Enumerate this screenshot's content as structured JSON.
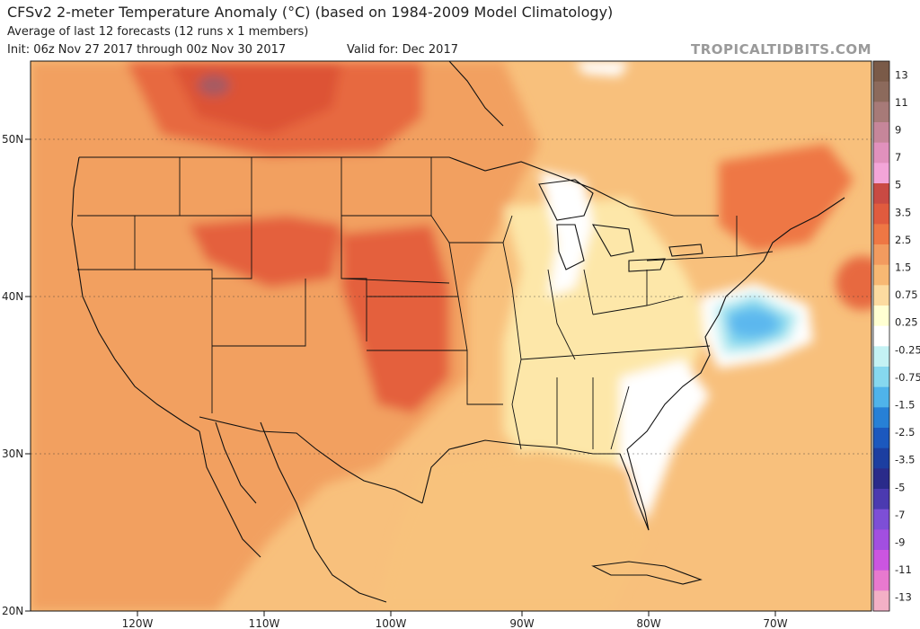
{
  "header": {
    "title": "CFSv2 2-meter Temperature Anomaly (°C) (based on 1984-2009 Model Climatology)",
    "subtitle": "Average of last 12 forecasts (12 runs x 1 members)",
    "init": "Init: 06z Nov 27 2017 through 00z Nov 30 2017",
    "valid": "Valid for: Dec 2017",
    "brand": "TROPICALTIDBITS.COM"
  },
  "map": {
    "lat_labels": [
      "50N",
      "40N",
      "30N",
      "20N"
    ],
    "lon_labels": [
      "120W",
      "110W",
      "100W",
      "90W",
      "80W",
      "70W"
    ]
  },
  "colorbar": {
    "labels": [
      "13",
      "11",
      "9",
      "7",
      "5",
      "3.5",
      "2.5",
      "1.5",
      "0.75",
      "0.25",
      "-0.25",
      "-0.75",
      "-1.5",
      "-2.5",
      "-3.5",
      "-5",
      "-7",
      "-9",
      "-11",
      "-13"
    ],
    "colors": [
      "#7a5a48",
      "#8c6a5c",
      "#a77a78",
      "#c6869a",
      "#e191bd",
      "#f3a5d8",
      "#c94a43",
      "#e05b3e",
      "#ee7744",
      "#f29b5f",
      "#f7b873",
      "#fcdba0",
      "#ffffd2",
      "#ffffff",
      "#c4f2f4",
      "#86d8ef",
      "#4fb3ea",
      "#2780d6",
      "#1c58be",
      "#1c3ea0",
      "#2a2b8a",
      "#4b3ab0",
      "#7d4fd6",
      "#a24fe0",
      "#cb55e0",
      "#e879cf",
      "#f3b0c6"
    ]
  },
  "colors": {
    "warm_strong": "#e35d3a",
    "warm_mid": "#f19a5a",
    "warm_light": "#f8c27c",
    "near_zero": "#fde9b4",
    "cool": "#5bb7ee"
  }
}
